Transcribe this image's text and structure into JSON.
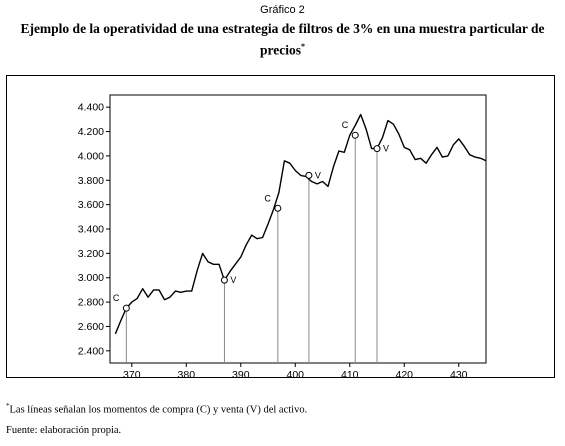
{
  "header": {
    "caption": "Gráfico 2",
    "title_line1": "Ejemplo de la operatividad de una estrategia de filtros de 3% en una muestra particular de",
    "title_line2": "precios",
    "title_mark": "*"
  },
  "footer": {
    "note_mark": "*",
    "note": "Las líneas señalan los momentos de compra (C) y venta (V) del activo.",
    "source": "Fuente: elaboración propia."
  },
  "chart_data": {
    "type": "line",
    "xlim": [
      366,
      435
    ],
    "ylim": [
      2300,
      4500
    ],
    "xticks": [
      370,
      380,
      390,
      400,
      410,
      420,
      430
    ],
    "yticks": [
      2400,
      2600,
      2800,
      3000,
      3200,
      3400,
      3600,
      3800,
      4000,
      4200,
      4400
    ],
    "ytick_labels": [
      "2.400",
      "2.600",
      "2.800",
      "3.000",
      "3.200",
      "3.400",
      "3.600",
      "3.800",
      "4.000",
      "4.200",
      "4.400"
    ],
    "series": [
      {
        "x": [
          367,
          368,
          369,
          370,
          371,
          372,
          373,
          374,
          375,
          376,
          377,
          378,
          379,
          380,
          381,
          382,
          383,
          384,
          385,
          386,
          387,
          388,
          389,
          390,
          391,
          392,
          393,
          394,
          395,
          396,
          397,
          398,
          399,
          400,
          401,
          402,
          403,
          404,
          405,
          406,
          407,
          408,
          409,
          410,
          411,
          412,
          413,
          414,
          415,
          416,
          417,
          418,
          419,
          420,
          421,
          422,
          423,
          424,
          425,
          426,
          427,
          428,
          429,
          430,
          431,
          432,
          433,
          434,
          435
        ],
        "y": [
          2540,
          2650,
          2750,
          2800,
          2830,
          2910,
          2840,
          2900,
          2900,
          2820,
          2840,
          2890,
          2880,
          2890,
          2890,
          3060,
          3200,
          3130,
          3110,
          3110,
          2980,
          3050,
          3110,
          3170,
          3270,
          3350,
          3320,
          3330,
          3440,
          3560,
          3700,
          3960,
          3940,
          3880,
          3840,
          3830,
          3790,
          3770,
          3790,
          3750,
          3910,
          4040,
          4030,
          4170,
          4250,
          4340,
          4220,
          4060,
          4060,
          4150,
          4290,
          4260,
          4180,
          4070,
          4050,
          3970,
          3980,
          3940,
          4010,
          4070,
          3990,
          4000,
          4090,
          4140,
          4080,
          4010,
          3990,
          3980,
          3960
        ]
      }
    ],
    "signals": [
      {
        "label": "C",
        "x": 369,
        "y": 2750
      },
      {
        "label": "V",
        "x": 387,
        "y": 2980
      },
      {
        "label": "C",
        "x": 396.8,
        "y": 3570
      },
      {
        "label": "V",
        "x": 402.5,
        "y": 3840
      },
      {
        "label": "C",
        "x": 411,
        "y": 4170
      },
      {
        "label": "V",
        "x": 415,
        "y": 4060
      }
    ]
  }
}
